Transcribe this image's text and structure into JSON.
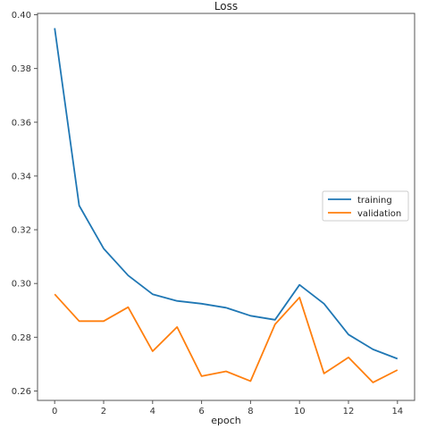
{
  "chart_data": {
    "type": "line",
    "title": "Loss",
    "xlabel": "epoch",
    "ylabel": "",
    "x": [
      0,
      1,
      2,
      3,
      4,
      5,
      6,
      7,
      8,
      9,
      10,
      11,
      12,
      13,
      14
    ],
    "xlim": [
      -0.7,
      14.7
    ],
    "ylim": [
      0.2565,
      0.4005
    ],
    "xticks": [
      0,
      2,
      4,
      6,
      8,
      10,
      12,
      14
    ],
    "yticks": [
      0.26,
      0.28,
      0.3,
      0.32,
      0.34,
      0.36,
      0.38,
      0.4
    ],
    "ytick_labels": [
      "0.26",
      "0.28",
      "0.30",
      "0.32",
      "0.34",
      "0.36",
      "0.38",
      "0.40"
    ],
    "grid": false,
    "legend_position": "center-right",
    "series": [
      {
        "name": "training",
        "color": "#1f77b4",
        "values": [
          0.395,
          0.329,
          0.313,
          0.303,
          0.296,
          0.2935,
          0.2925,
          0.291,
          0.288,
          0.2865,
          0.2995,
          0.2925,
          0.281,
          0.2755,
          0.272
        ]
      },
      {
        "name": "validation",
        "color": "#ff7f0e",
        "values": [
          0.296,
          0.286,
          0.286,
          0.2912,
          0.2748,
          0.2838,
          0.2655,
          0.2673,
          0.2637,
          0.2848,
          0.2948,
          0.2665,
          0.2725,
          0.2632,
          0.2678
        ]
      }
    ]
  }
}
